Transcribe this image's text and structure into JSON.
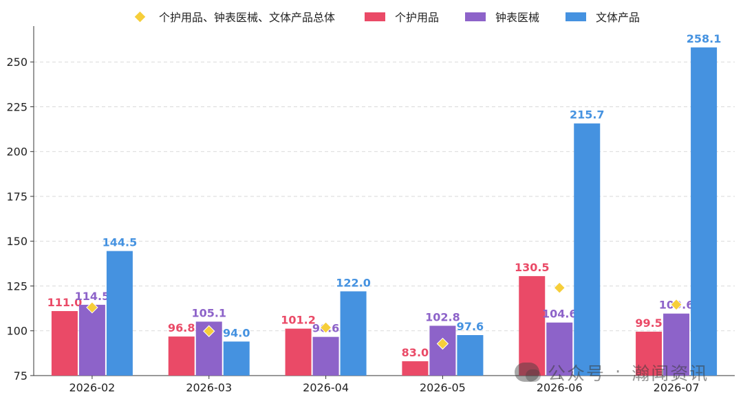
{
  "chart_data": {
    "type": "bar",
    "categories": [
      "2026-02",
      "2026-03",
      "2026-04",
      "2026-05",
      "2026-06",
      "2026-07"
    ],
    "series": [
      {
        "name": "个护用品",
        "kind": "bar",
        "color": "#ea4a67",
        "values": [
          111.0,
          96.8,
          101.2,
          83.0,
          130.5,
          99.5
        ],
        "labels": [
          "111.0",
          "96.8",
          "101.2",
          "83.0",
          "130.5",
          "99.5"
        ]
      },
      {
        "name": "钟表医械",
        "kind": "bar",
        "color": "#8d63c9",
        "values": [
          114.5,
          105.1,
          96.6,
          102.8,
          104.6,
          109.6
        ],
        "labels": [
          "114.5",
          "105.1",
          "96.6",
          "102.8",
          "104.6",
          "109.6"
        ]
      },
      {
        "name": "文体产品",
        "kind": "bar",
        "color": "#4592e0",
        "values": [
          144.5,
          94.0,
          122.0,
          97.6,
          215.7,
          258.1
        ],
        "labels": [
          "144.5",
          "94.0",
          "122.0",
          "97.6",
          "215.7",
          "258.1"
        ]
      },
      {
        "name": "个护用品、钟表医械、文体产品总体",
        "kind": "marker",
        "color": "#f6ce3a",
        "values": [
          113.0,
          99.8,
          101.8,
          92.8,
          124.0,
          114.6
        ]
      }
    ],
    "ylim": [
      75,
      270
    ],
    "yticks": [
      75,
      100,
      125,
      150,
      175,
      200,
      225,
      250
    ],
    "grid": true,
    "legend_position": "top"
  },
  "legend": {
    "items": [
      {
        "label": "个护用品、钟表医械、文体产品总体",
        "color": "#f6ce3a",
        "shape": "diamond"
      },
      {
        "label": "个护用品",
        "color": "#ea4a67",
        "shape": "rect"
      },
      {
        "label": "钟表医械",
        "color": "#8d63c9",
        "shape": "rect"
      },
      {
        "label": "文体产品",
        "color": "#4592e0",
        "shape": "rect"
      }
    ]
  },
  "watermark": {
    "icon": "wechat-icon",
    "name": "公众号",
    "dot": "·",
    "brand": "瀚闻资讯"
  }
}
